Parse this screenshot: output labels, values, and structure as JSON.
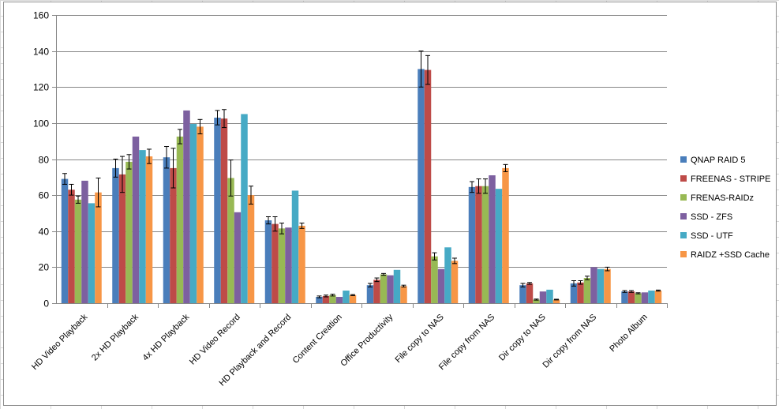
{
  "chart_data": {
    "type": "bar",
    "title": "",
    "xlabel": "",
    "ylabel": "",
    "ylim": [
      0,
      160
    ],
    "yticks": [
      0,
      20,
      40,
      60,
      80,
      100,
      120,
      140,
      160
    ],
    "grid": true,
    "legend_position": "right",
    "error_bars": true,
    "categories": [
      "HD Video Playback",
      "2x HD Playback",
      "4x HD Playback",
      "HD Video Record",
      "HD Playback and Record",
      "Content Creation",
      "Office Productivity",
      "File copy to NAS",
      "File copy from NAS",
      "Dir copy to NAS",
      "Dir copy from NAS",
      "Photo Album"
    ],
    "series": [
      {
        "name": "QNAP RAID 5",
        "color": "#4a7ebb",
        "values": [
          69,
          75,
          81,
          103,
          46,
          3.5,
          10,
          130,
          64.5,
          10,
          11,
          6.5
        ],
        "errors": [
          3,
          5,
          6,
          4,
          2,
          0.5,
          1,
          10,
          3,
          1,
          1.5,
          0.5
        ]
      },
      {
        "name": "FREENAS - STRIPE",
        "color": "#be4b48",
        "values": [
          63,
          71.5,
          75,
          102.5,
          44,
          4,
          13,
          129.5,
          65,
          11,
          11.5,
          6.5
        ],
        "errors": [
          3,
          10,
          11,
          5,
          4,
          0.5,
          1,
          8,
          4,
          0.5,
          1,
          0.5
        ]
      },
      {
        "name": "FRENAS-RAIDz",
        "color": "#98b954",
        "values": [
          57.5,
          78.5,
          92.5,
          69.5,
          41.5,
          4.5,
          16,
          26,
          65,
          2,
          14,
          5.5
        ],
        "errors": [
          2,
          4,
          4,
          10,
          3,
          0.5,
          0.5,
          2,
          4,
          0.3,
          1,
          0.3
        ]
      },
      {
        "name": "SSD - ZFS",
        "color": "#7d60a0",
        "values": [
          68,
          92.5,
          107,
          50.5,
          42,
          3.5,
          15.5,
          19,
          71,
          6.5,
          20,
          6
        ],
        "errors": [
          0,
          0,
          0,
          0,
          0,
          0,
          0,
          0,
          0,
          0,
          0,
          0
        ]
      },
      {
        "name": "SSD - UTF",
        "color": "#46aac5",
        "values": [
          55.5,
          85,
          99.5,
          105,
          62.5,
          7,
          18.5,
          31,
          63.5,
          7.5,
          19,
          7
        ],
        "errors": [
          0,
          0,
          0,
          0,
          0,
          0,
          0,
          0,
          0,
          0,
          0,
          0
        ]
      },
      {
        "name": "RAIDZ +SSD Cache",
        "color": "#f79646",
        "values": [
          61.5,
          81.5,
          98,
          60,
          43,
          4.5,
          9.5,
          23.5,
          75,
          2,
          19,
          7
        ],
        "errors": [
          8,
          4,
          4,
          5,
          1.5,
          0.3,
          0.5,
          1.5,
          2,
          0.2,
          1,
          0.3
        ]
      }
    ]
  }
}
